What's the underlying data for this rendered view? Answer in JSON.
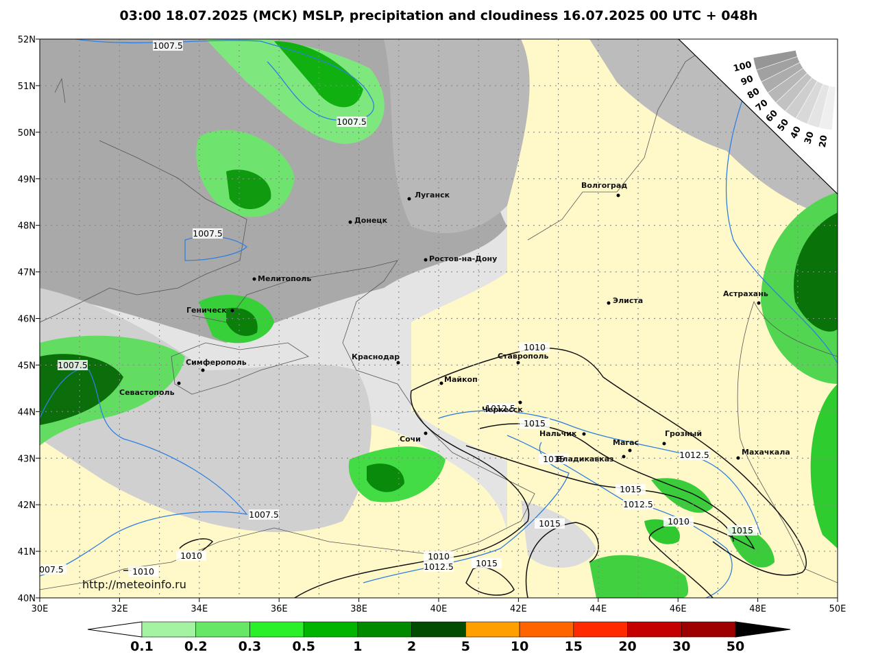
{
  "title": "03:00 18.07.2025 (МСК) MSLP, precipitation and cloudiness 16.07.2025 00 UTC + 048h",
  "latitude_labels": [
    "52N",
    "51N",
    "50N",
    "49N",
    "48N",
    "47N",
    "46N",
    "45N",
    "44N",
    "43N",
    "42N",
    "41N",
    "40N"
  ],
  "longitude_labels": [
    "30E",
    "32E",
    "34E",
    "36E",
    "38E",
    "40E",
    "42E",
    "44E",
    "46E",
    "48E",
    "50E"
  ],
  "cities": [
    "Луганск",
    "Донецк",
    "Ростов-на-Дону",
    "Мелитополь",
    "Геническ",
    "Симферополь",
    "Севастополь",
    "Краснодар",
    "Майкоп",
    "Ставрополь",
    "Черкесск",
    "Сочи",
    "Нальчик",
    "Магас",
    "Владикавказ",
    "Грозный",
    "Махачкала",
    "Волгоград",
    "Элиста",
    "Астрахань"
  ],
  "isobar_labels": [
    "1007.5",
    "1007.5",
    "1007.5",
    "1007.5",
    "1007.5",
    "007.5",
    "1010",
    "1010",
    "1010",
    "1010",
    "1010",
    "1012.5",
    "1012.5",
    "1012.5",
    "1012.5",
    "1015",
    "1015",
    "1015",
    "1015",
    "1015",
    "1015"
  ],
  "cloud_scale": {
    "labels": [
      "100",
      "90",
      "80",
      "70",
      "60",
      "50",
      "40",
      "30",
      "20"
    ]
  },
  "legend": {
    "labels": [
      "0.1",
      "0.2",
      "0.3",
      "0.5",
      "1",
      "2",
      "5",
      "10",
      "15",
      "20",
      "30",
      "50"
    ]
  },
  "source": "http://meteoinfo.ru"
}
